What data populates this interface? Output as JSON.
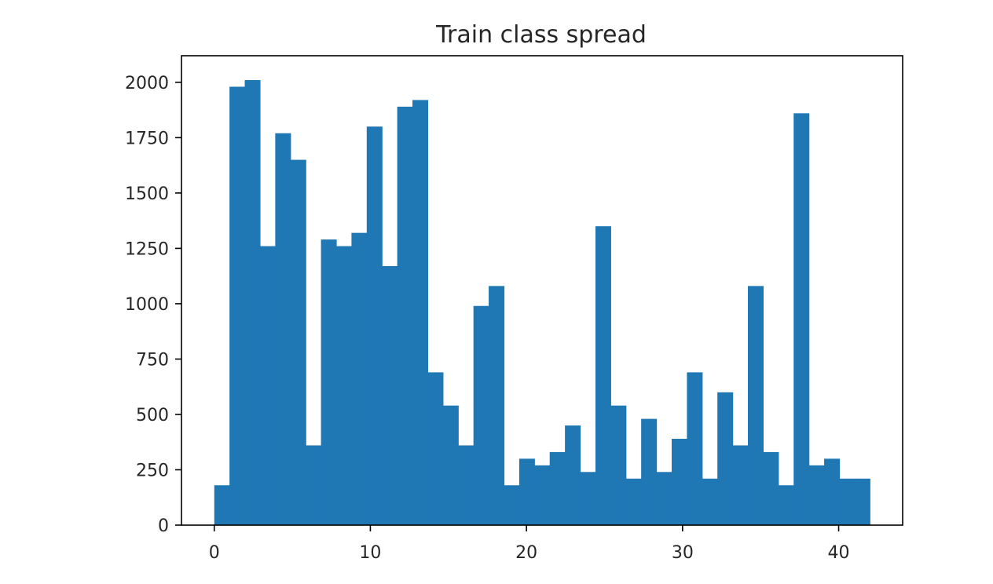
{
  "chart_data": {
    "type": "bar",
    "title": "Train class spread",
    "xlabel": "",
    "ylabel": "",
    "xlim": [
      -2.1,
      44.1
    ],
    "ylim": [
      0,
      2120
    ],
    "bin_start": 0,
    "bin_width": 0.976744,
    "values": [
      180,
      1980,
      2010,
      1260,
      1770,
      1650,
      360,
      1290,
      1260,
      1320,
      1800,
      1170,
      1890,
      1920,
      690,
      540,
      360,
      990,
      1080,
      180,
      300,
      270,
      330,
      450,
      240,
      1350,
      540,
      210,
      480,
      240,
      390,
      690,
      210,
      600,
      360,
      1080,
      330,
      180,
      1860,
      270,
      300,
      210,
      210
    ],
    "xticks": [
      0,
      10,
      20,
      30,
      40
    ],
    "xtick_labels": [
      "0",
      "10",
      "20",
      "30",
      "40"
    ],
    "yticks": [
      0,
      250,
      500,
      750,
      1000,
      1250,
      1500,
      1750,
      2000
    ],
    "ytick_labels": [
      "0",
      "250",
      "500",
      "750",
      "1000",
      "1250",
      "1500",
      "1750",
      "2000"
    ],
    "grid": false,
    "color": "#1f77b4"
  }
}
